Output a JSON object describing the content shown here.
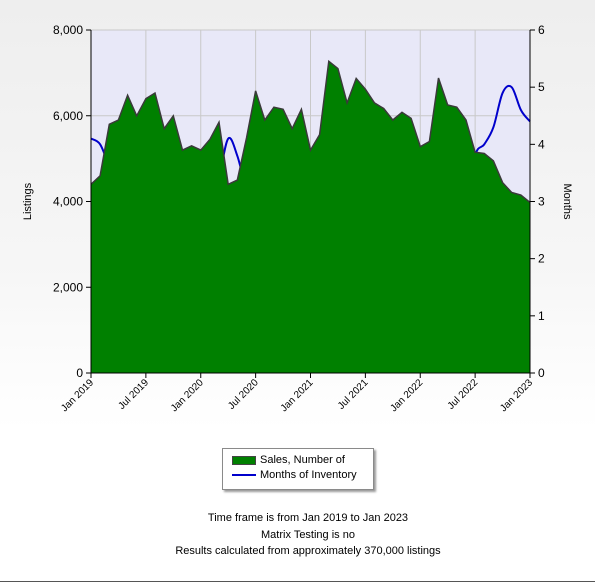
{
  "chart_data": {
    "type": "area",
    "x": [
      "Jan 2019",
      "Feb 2019",
      "Mar 2019",
      "Apr 2019",
      "May 2019",
      "Jun 2019",
      "Jul 2019",
      "Aug 2019",
      "Sep 2019",
      "Oct 2019",
      "Nov 2019",
      "Dec 2019",
      "Jan 2020",
      "Feb 2020",
      "Mar 2020",
      "Apr 2020",
      "May 2020",
      "Jun 2020",
      "Jul 2020",
      "Aug 2020",
      "Sep 2020",
      "Oct 2020",
      "Nov 2020",
      "Dec 2020",
      "Jan 2021",
      "Feb 2021",
      "Mar 2021",
      "Apr 2021",
      "May 2021",
      "Jun 2021",
      "Jul 2021",
      "Aug 2021",
      "Sep 2021",
      "Oct 2021",
      "Nov 2021",
      "Dec 2021",
      "Jan 2022",
      "Feb 2022",
      "Mar 2022",
      "Apr 2022",
      "May 2022",
      "Jun 2022",
      "Jul 2022",
      "Aug 2022",
      "Sep 2022",
      "Oct 2022",
      "Nov 2022",
      "Dec 2022",
      "Jan 2023"
    ],
    "series": [
      {
        "name": "Sales, Number of",
        "axis": "left",
        "color": "#008000",
        "values": [
          4400,
          4600,
          5800,
          5900,
          6480,
          6000,
          6400,
          6530,
          5700,
          6000,
          5200,
          5300,
          5200,
          5450,
          5850,
          4400,
          4500,
          5480,
          6580,
          5900,
          6200,
          6150,
          5700,
          6150,
          5200,
          5560,
          7270,
          7100,
          6300,
          6870,
          6620,
          6300,
          6170,
          5900,
          6080,
          5940,
          5280,
          5400,
          6880,
          6250,
          6200,
          5900,
          5150,
          5120,
          4950,
          4440,
          4210,
          4150,
          3980
        ]
      },
      {
        "name": "Months of Inventory",
        "axis": "right",
        "color": "#0000cc",
        "values": [
          4.1,
          4.0,
          3.6,
          3.1,
          2.7,
          2.5,
          2.5,
          2.6,
          2.6,
          2.6,
          2.6,
          2.6,
          2.6,
          2.8,
          3.4,
          4.1,
          3.8,
          3.2,
          2.9,
          2.6,
          2.3,
          2.0,
          1.8,
          1.7,
          1.6,
          1.5,
          1.5,
          1.5,
          1.5,
          1.6,
          1.6,
          1.6,
          1.6,
          1.6,
          1.6,
          1.6,
          1.7,
          1.8,
          2.0,
          2.2,
          2.5,
          2.8,
          3.8,
          4.0,
          4.3,
          4.9,
          5.0,
          4.6,
          4.4
        ]
      }
    ],
    "ylabel": "Listings",
    "ylabel_right": "Months",
    "ylim": [
      0,
      8000
    ],
    "ylim_right": [
      0,
      6
    ],
    "y_ticks": [
      "0",
      "2,000",
      "4,000",
      "6,000",
      "8,000"
    ],
    "y_ticks_right": [
      "0",
      "1",
      "2",
      "3",
      "4",
      "5",
      "6"
    ],
    "x_ticks": [
      "Jan 2019",
      "Jul 2019",
      "Jan 2020",
      "Jul 2020",
      "Jan 2021",
      "Jul 2021",
      "Jan 2022",
      "Jul 2022",
      "Jan 2023"
    ],
    "grid": true,
    "legend_position": "bottom"
  },
  "legend": {
    "items": [
      "Sales, Number of",
      "Months of Inventory"
    ]
  },
  "notes": [
    "Time frame is from Jan 2019 to Jan 2023",
    "Matrix Testing is no",
    "Results calculated from approximately 370,000 listings"
  ]
}
